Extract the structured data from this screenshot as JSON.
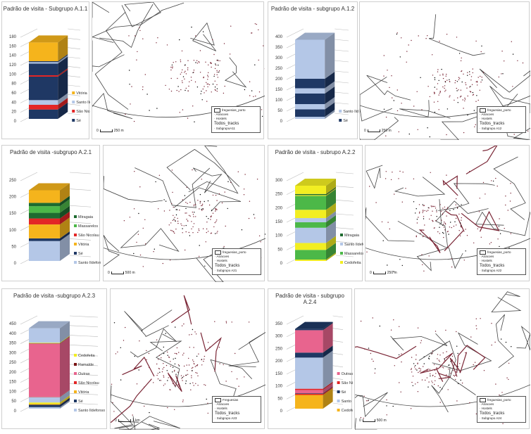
{
  "colors": {
    "Sé": "#1f3864",
    "Santo Ildefonso": "#b4c7e7",
    "São Nicolau": "#e32626",
    "Vitória": "#f5b41c",
    "Miragaia": "#1e6b30",
    "Massarelos": "#4cb848",
    "Cedofeita": "#f2ee22",
    "Cedofeita_orange": "#f5b41c",
    "Outras": "#e8648e",
    "Ramalde": "#7a1414",
    "track": "#7a2535"
  },
  "chart_data": [
    {
      "type": "bar",
      "stacked": true,
      "title": "Padrão de visita - Subgrupo A.1.1",
      "ylim": [
        0,
        180
      ],
      "ticks": [
        0,
        20,
        40,
        60,
        80,
        100,
        120,
        140,
        160,
        180
      ],
      "legend": [
        "Vitória",
        "Santo Ildefonso",
        "São Nicolau",
        "Sé"
      ],
      "segments": [
        [
          "Sé",
          20
        ],
        [
          "São Nicolau",
          10
        ],
        [
          "Santo Ildefonso",
          10
        ],
        [
          "Sé",
          50
        ],
        [
          "São Nicolau",
          3
        ],
        [
          "Sé",
          25
        ],
        [
          "Santo Ildefonso",
          3
        ],
        [
          "Sé",
          2
        ],
        [
          "Vitória",
          40
        ]
      ]
    },
    {
      "type": "bar",
      "stacked": true,
      "title": "Padrão de visita - subgrupo A.1.2",
      "ylim": [
        0,
        400
      ],
      "ticks": [
        0,
        50,
        100,
        150,
        200,
        250,
        300,
        350,
        400
      ],
      "legend": [
        "Santo Ildefonso",
        "Sé"
      ],
      "segments": [
        [
          "Santo Ildefonso",
          10
        ],
        [
          "Sé",
          35
        ],
        [
          "Santo Ildefonso",
          25
        ],
        [
          "Sé",
          50
        ],
        [
          "Santo Ildefonso",
          25
        ],
        [
          "Sé",
          45
        ],
        [
          "Santo Ildefonso",
          185
        ]
      ]
    },
    {
      "type": "bar",
      "stacked": true,
      "title": "Padrão de visita -subgrupo A.2.1",
      "ylim": [
        0,
        250
      ],
      "ticks": [
        0,
        50,
        100,
        150,
        200,
        250
      ],
      "legend": [
        "Miragaia",
        "Massarelos",
        "São Nicolau",
        "Vitória",
        "Sé",
        "Santo Ildefonso"
      ],
      "segments": [
        [
          "Santo Ildefonso",
          60
        ],
        [
          "Sé",
          8
        ],
        [
          "Vitória",
          42
        ],
        [
          "São Nicolau",
          18
        ],
        [
          "Miragaia",
          17
        ],
        [
          "Massarelos",
          20
        ],
        [
          "Miragaia",
          10
        ],
        [
          "Vitória",
          38
        ]
      ]
    },
    {
      "type": "bar",
      "stacked": true,
      "title": "Padrão de visita - subrupo A.2.2",
      "ylim": [
        0,
        300
      ],
      "ticks": [
        0,
        50,
        100,
        150,
        200,
        250,
        300
      ],
      "legend": [
        "Miragaia",
        "Santo Ildefonso",
        "Massarelos",
        "Cedofeita"
      ],
      "segments": [
        [
          "Cedofeita",
          5
        ],
        [
          "Massarelos",
          35
        ],
        [
          "Cedofeita",
          25
        ],
        [
          "Santo Ildefonso",
          55
        ],
        [
          "Massarelos",
          20
        ],
        [
          "Santo Ildefonso",
          15
        ],
        [
          "Cedofeita",
          30
        ],
        [
          "Massarelos",
          50
        ],
        [
          "Cedofeita",
          3
        ],
        [
          "Miragaia",
          4
        ],
        [
          "Cedofeita",
          30
        ]
      ]
    },
    {
      "type": "bar",
      "stacked": true,
      "title": "Padrão de visita -subgrupo A.2.3",
      "ylim": [
        0,
        450
      ],
      "ticks": [
        0,
        50,
        100,
        150,
        200,
        250,
        300,
        350,
        400,
        450
      ],
      "legend": [
        "Cedofeita",
        "Ramalde",
        "Outras",
        "São Nicolau",
        "Vitória",
        "Sé",
        "Santo Ildefonso"
      ],
      "segments": [
        [
          "Santo Ildefonso",
          8
        ],
        [
          "Sé",
          12
        ],
        [
          "Vitória",
          5
        ],
        [
          "Cedofeita",
          7
        ],
        [
          "Santo Ildefonso",
          28
        ],
        [
          "São Nicolau",
          2
        ],
        [
          "Outras",
          273
        ],
        [
          "Ramalde",
          2
        ],
        [
          "Cedofeita",
          3
        ],
        [
          "Santo Ildefonso",
          75
        ]
      ]
    },
    {
      "type": "bar",
      "stacked": true,
      "title": "Padrão de visita - subgrupo A.2.4",
      "ylim": [
        0,
        350
      ],
      "ticks": [
        0,
        50,
        100,
        150,
        200,
        250,
        300,
        350
      ],
      "legend": [
        "Outras",
        "São Nicolau",
        "Sé",
        "Santo Ildefonso",
        "Cedofeita"
      ],
      "cedofeita_color": "orange",
      "segments": [
        [
          "Cedofeita",
          55
        ],
        [
          "São Nicolau",
          5
        ],
        [
          "Sé",
          2
        ],
        [
          "Outras",
          13
        ],
        [
          "São Nicolau",
          5
        ],
        [
          "Santo Ildefonso",
          125
        ],
        [
          "Sé",
          20
        ],
        [
          "Outras",
          90
        ],
        [
          "Sé",
          5
        ]
      ]
    }
  ],
  "maps": [
    {
      "legend": [
        "freguesias_porto",
        "Atracoes",
        "Hostels"
      ],
      "tracks_title": "Todos_tracks",
      "subgroup": "SubgrupoA11",
      "scale": "250 m"
    },
    {
      "legend": [
        "freguesias_porto",
        "Atracoes",
        "Hostels"
      ],
      "tracks_title": "Todos_tracks",
      "subgroup": "Subgrupo A12",
      "scale": "250 m"
    },
    {
      "legend": [
        "freguesias_porto",
        "Atracoes",
        "Hostels"
      ],
      "tracks_title": "Todos_tracks",
      "subgroup": "Subgrupo A21",
      "scale": "500 m"
    },
    {
      "legend": [
        "freguesias_porto",
        "Atracoes",
        "Hostels"
      ],
      "tracks_title": "Todos_tracks",
      "subgroup": "Subgrupo A22",
      "scale": "250 m"
    },
    {
      "legend": [
        "Freguesias",
        "Atracoes",
        "Hostels"
      ],
      "tracks_title": "Todos_tracks",
      "subgroup": "Subgrupo A23",
      "scale": "1 km"
    },
    {
      "legend": [
        "freguesias_porto",
        "Atracoes",
        "Hostels"
      ],
      "tracks_title": "Todos_tracks",
      "subgroup": "Subgrupo A24",
      "scale": "500 m"
    }
  ]
}
